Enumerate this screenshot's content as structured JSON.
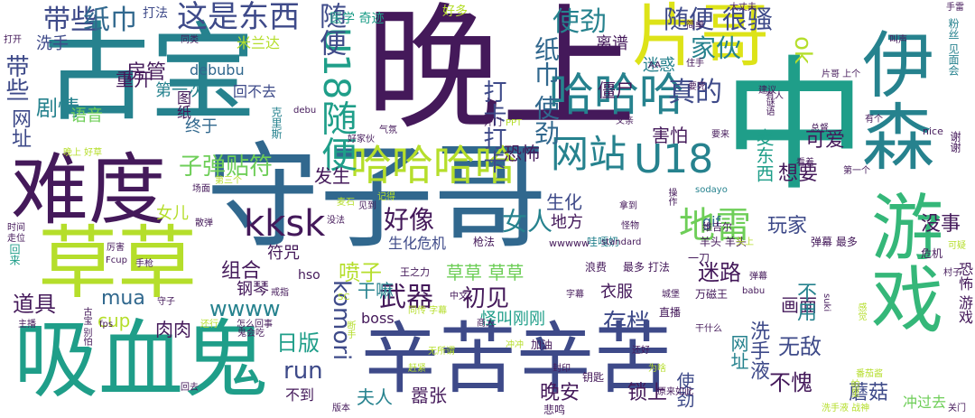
{
  "palette": {
    "purple": "#44195a",
    "indigo": "#3e4a89",
    "blue": "#31688e",
    "teal": "#26828e",
    "green": "#1f9e89",
    "lightgreen": "#35b779",
    "lime": "#6ece58",
    "yellow": "#b5de2b",
    "bright": "#dde318"
  },
  "words": [
    {
      "text": "晚上",
      "weight": 1.0
    },
    {
      "text": "守子哥",
      "weight": 0.98
    },
    {
      "text": "古宝",
      "weight": 0.9
    },
    {
      "text": "吸血鬼",
      "weight": 0.78
    },
    {
      "text": "草草",
      "weight": 0.75
    },
    {
      "text": "辛苦辛苦",
      "weight": 0.74
    },
    {
      "text": "难度",
      "weight": 0.72
    },
    {
      "text": "伊森",
      "weight": 0.72
    },
    {
      "text": "游戏",
      "weight": 0.7
    },
    {
      "text": "片哥",
      "weight": 0.66
    },
    {
      "text": "中",
      "weight": 0.66
    },
    {
      "text": "哈哈哈",
      "weight": 0.52
    },
    {
      "text": "哈哈哈哈",
      "weight": 0.46
    },
    {
      "text": "网站",
      "weight": 0.44
    },
    {
      "text": "U18",
      "weight": 0.44
    },
    {
      "text": "U18随便",
      "weight": 0.42
    },
    {
      "text": "地雷",
      "weight": 0.4
    },
    {
      "text": "kksk",
      "weight": 0.4
    },
    {
      "text": "这是东西",
      "weight": 0.36
    },
    {
      "text": "随便",
      "weight": 0.3
    },
    {
      "text": "带些",
      "weight": 0.3
    },
    {
      "text": "纸巾",
      "weight": 0.3
    },
    {
      "text": "使劲",
      "weight": 0.3
    },
    {
      "text": "打卡打卡",
      "weight": 0.28
    },
    {
      "text": "纸巾 使劲",
      "weight": 0.28
    },
    {
      "text": "随便 很骚",
      "weight": 0.28
    },
    {
      "text": "真的",
      "weight": 0.28
    },
    {
      "text": "家伙",
      "weight": 0.28
    },
    {
      "text": "ok",
      "weight": 0.28
    },
    {
      "text": "好像",
      "weight": 0.28
    },
    {
      "text": "女人",
      "weight": 0.28
    },
    {
      "text": "子弹贴符",
      "weight": 0.28
    },
    {
      "text": "生化",
      "weight": 0.24
    },
    {
      "text": "玩家",
      "weight": 0.24
    },
    {
      "text": "没事",
      "weight": 0.24
    },
    {
      "text": "剧情",
      "weight": 0.24
    },
    {
      "text": "房管",
      "weight": 0.24
    },
    {
      "text": "带些",
      "weight": 0.24
    },
    {
      "text": "网址",
      "weight": 0.24
    },
    {
      "text": "道具",
      "weight": 0.24
    },
    {
      "text": "武器",
      "weight": 0.3
    },
    {
      "text": "初见",
      "weight": 0.28
    },
    {
      "text": "存档",
      "weight": 0.28
    },
    {
      "text": "喷子",
      "weight": 0.26
    },
    {
      "text": "komori",
      "weight": 0.34
    },
    {
      "text": "run",
      "weight": 0.28
    },
    {
      "text": "日版",
      "weight": 0.26
    },
    {
      "text": "夫人",
      "weight": 0.24
    },
    {
      "text": "无敌",
      "weight": 0.26
    },
    {
      "text": "不愧",
      "weight": 0.26
    },
    {
      "text": "蘑菇",
      "weight": 0.24
    },
    {
      "text": "冲过去",
      "weight": 0.24
    },
    {
      "text": "洗手液",
      "weight": 0.24
    },
    {
      "text": "网址",
      "weight": 0.24
    },
    {
      "text": "使劲",
      "weight": 0.24
    },
    {
      "text": "晚安",
      "weight": 0.24
    },
    {
      "text": "锁上",
      "weight": 0.24
    },
    {
      "text": "嚣张",
      "weight": 0.24
    },
    {
      "text": "不到",
      "weight": 0.2
    },
    {
      "text": "boss",
      "weight": 0.2
    },
    {
      "text": "wwww",
      "weight": 0.24
    },
    {
      "text": "mua",
      "weight": 0.22
    },
    {
      "text": "cup",
      "weight": 0.22
    },
    {
      "text": "肉肉",
      "weight": 0.22
    },
    {
      "text": "迷路",
      "weight": 0.26
    },
    {
      "text": "画面",
      "weight": 0.24
    },
    {
      "text": "不用",
      "weight": 0.22
    },
    {
      "text": "恐怖 游戏",
      "weight": 0.2
    },
    {
      "text": "草草 草草",
      "weight": 0.22
    },
    {
      "text": "干嘛",
      "weight": 0.22
    },
    {
      "text": "怪叫刚刚",
      "weight": 0.2
    },
    {
      "text": "组合",
      "weight": 0.22
    },
    {
      "text": "钢琴",
      "weight": 0.2
    },
    {
      "text": "符咒",
      "weight": 0.2
    },
    {
      "text": "僵尸",
      "weight": 0.22
    },
    {
      "text": "离谱",
      "weight": 0.2
    },
    {
      "text": "迷惑",
      "weight": 0.2
    },
    {
      "text": "可爱",
      "weight": 0.2
    },
    {
      "text": "想要",
      "weight": 0.2
    },
    {
      "text": "麦东西",
      "weight": 0.2
    },
    {
      "text": "发生",
      "weight": 0.2
    },
    {
      "text": "女儿",
      "weight": 0.18
    },
    {
      "text": "地方",
      "weight": 0.18
    },
    {
      "text": "衣服",
      "weight": 0.18
    },
    {
      "text": "生化危机",
      "weight": 0.16
    },
    {
      "text": "重开",
      "weight": 0.2
    },
    {
      "text": "第一次",
      "weight": 0.2
    },
    {
      "text": "回不去",
      "weight": 0.18
    },
    {
      "text": "debubu",
      "weight": 0.18
    },
    {
      "text": "语音",
      "weight": 0.2
    },
    {
      "text": "终于",
      "weight": 0.2
    },
    {
      "text": "洗手",
      "weight": 0.18
    },
    {
      "text": "米兰达",
      "weight": 0.16
    },
    {
      "text": "医学 奇迹",
      "weight": 0.16
    },
    {
      "text": "打法",
      "weight": 0.14
    },
    {
      "text": "好多",
      "weight": 0.14
    },
    {
      "text": "恐怖",
      "weight": 0.2
    },
    {
      "text": "害怕",
      "weight": 0.2
    },
    {
      "text": "图纸",
      "weight": 0.16
    },
    {
      "text": "gif",
      "weight": 0.18
    },
    {
      "text": "hso",
      "weight": 0.16
    },
    {
      "text": "羊头 羊头",
      "weight": 0.12
    },
    {
      "text": "弹幕 最多",
      "weight": 0.12
    },
    {
      "text": "浪费",
      "weight": 0.12
    },
    {
      "text": "最多 打法",
      "weight": 0.12
    },
    {
      "text": "哇嘎奶",
      "weight": 0.12
    },
    {
      "text": "枪法",
      "weight": 0.12
    },
    {
      "text": "王之力",
      "weight": 0.12
    },
    {
      "text": "同传 字幕",
      "weight": 0.1
    },
    {
      "text": "万磁王",
      "weight": 0.12
    },
    {
      "text": "鬼会吃",
      "weight": 0.1
    },
    {
      "text": "加油",
      "weight": 0.12
    },
    {
      "text": "钥匙",
      "weight": 0.12
    },
    {
      "text": "悲鸣",
      "weight": 0.12
    },
    {
      "text": "危机",
      "weight": 0.12
    },
    {
      "text": "可疑",
      "weight": 0.12
    },
    {
      "text": "村子",
      "weight": 0.12
    },
    {
      "text": "一刀",
      "weight": 0.12
    },
    {
      "text": "直播",
      "weight": 0.12
    },
    {
      "text": "wwwww",
      "weight": 0.12
    },
    {
      "text": "standard",
      "weight": 0.1
    },
    {
      "text": "sodayo",
      "weight": 0.1
    },
    {
      "text": "维吉尔",
      "weight": 0.12
    },
    {
      "text": "怪物",
      "weight": 0.1
    },
    {
      "text": "babu",
      "weight": 0.1
    },
    {
      "text": "字幕",
      "weight": 0.1
    },
    {
      "text": "城堡",
      "weight": 0.1
    },
    {
      "text": "干什么",
      "weight": 0.1
    },
    {
      "text": "弹幕",
      "weight": 0.1
    },
    {
      "text": "头上",
      "weight": 0.1
    },
    {
      "text": "操作",
      "weight": 0.1
    },
    {
      "text": "拿到",
      "weight": 0.1
    },
    {
      "text": "看着",
      "weight": 0.1
    },
    {
      "text": "第一个",
      "weight": 0.1
    },
    {
      "text": "总督",
      "weight": 0.1
    },
    {
      "text": "要来",
      "weight": 0.1
    },
    {
      "text": "有个",
      "weight": 0.1
    },
    {
      "text": "建议",
      "weight": 0.1
    },
    {
      "text": "有人",
      "weight": 0.1
    },
    {
      "text": "谜语",
      "weight": 0.1
    },
    {
      "text": "nice",
      "weight": 0.1
    },
    {
      "text": "谢谢",
      "weight": 0.12
    },
    {
      "text": "粉丝 见面会",
      "weight": 0.12
    },
    {
      "text": "片哥 上个",
      "weight": 0.1
    },
    {
      "text": "要死",
      "weight": 0.1
    },
    {
      "text": "住手",
      "weight": 0.1
    },
    {
      "text": "简单",
      "weight": 0.1
    },
    {
      "text": "叫声",
      "weight": 0.1
    },
    {
      "text": "手雷",
      "weight": 0.1
    },
    {
      "text": "大丈夫",
      "weight": 0.1
    },
    {
      "text": "AA",
      "weight": 0.1
    },
    {
      "text": "开门",
      "weight": 0.1
    },
    {
      "text": "PPT",
      "weight": 0.1
    },
    {
      "text": "父亲",
      "weight": 0.1
    },
    {
      "text": "气氛",
      "weight": 0.1
    },
    {
      "text": "好家伙",
      "weight": 0.1
    },
    {
      "text": "晚上 好草",
      "weight": 0.1
    },
    {
      "text": "克里斯",
      "weight": 0.1
    },
    {
      "text": "同类",
      "weight": 0.1
    },
    {
      "text": "打开",
      "weight": 0.1
    },
    {
      "text": "debu",
      "weight": 0.1
    },
    {
      "text": "手枪",
      "weight": 0.1
    },
    {
      "text": "场面",
      "weight": 0.1
    },
    {
      "text": "第三个",
      "weight": 0.1
    },
    {
      "text": "散弹",
      "weight": 0.1
    },
    {
      "text": "没法",
      "weight": 0.1
    },
    {
      "text": "时间",
      "weight": 0.1
    },
    {
      "text": "走位",
      "weight": 0.1
    },
    {
      "text": "厉害",
      "weight": 0.1
    },
    {
      "text": "Fcup",
      "weight": 0.1
    },
    {
      "text": "戒指",
      "weight": 0.1
    },
    {
      "text": "守子",
      "weight": 0.1
    },
    {
      "text": "SC",
      "weight": 0.1
    },
    {
      "text": "中文",
      "weight": 0.1
    },
    {
      "text": "商人",
      "weight": 0.1
    },
    {
      "text": "主播",
      "weight": 0.1
    },
    {
      "text": "古宝 别怕",
      "weight": 0.1
    },
    {
      "text": "fps",
      "weight": 0.1
    },
    {
      "text": "还行",
      "weight": 0.1
    },
    {
      "text": "怎么回事",
      "weight": 0.1
    },
    {
      "text": "断手",
      "weight": 0.1
    },
    {
      "text": "无所谓",
      "weight": 0.1
    },
    {
      "text": "赶紧",
      "weight": 0.1
    },
    {
      "text": "封印",
      "weight": 0.1
    },
    {
      "text": "为啥",
      "weight": 0.1
    },
    {
      "text": "还好",
      "weight": 0.1
    },
    {
      "text": "原来如此",
      "weight": 0.1
    },
    {
      "text": "回去",
      "weight": 0.1
    },
    {
      "text": "版本",
      "weight": 0.1
    },
    {
      "text": "冲冲",
      "weight": 0.1
    },
    {
      "text": "洗手液 战神",
      "weight": 0.1
    },
    {
      "text": "关门",
      "weight": 0.1
    },
    {
      "text": "帕里",
      "weight": 0.1
    },
    {
      "text": "番茄酱",
      "weight": 0.1
    },
    {
      "text": "suki",
      "weight": 0.1
    },
    {
      "text": "感觉",
      "weight": 0.1
    },
    {
      "text": "回来",
      "weight": 0.1
    },
    {
      "text": "记得",
      "weight": 0.1
    },
    {
      "text": "麦石",
      "weight": 0.1
    },
    {
      "text": "见到",
      "weight": 0.1
    }
  ]
}
